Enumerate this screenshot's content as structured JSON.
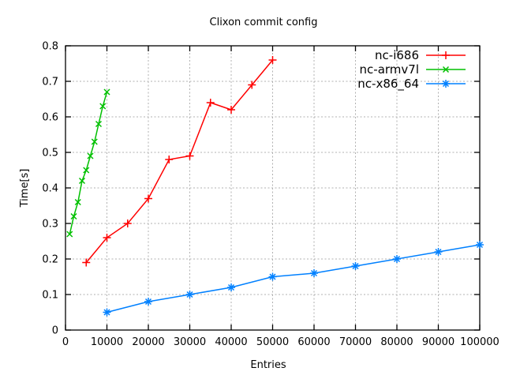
{
  "chart_data": {
    "type": "line",
    "title": "Clixon commit config",
    "xlabel": "Entries",
    "ylabel": "Time[s]",
    "xlim": [
      0,
      100000
    ],
    "ylim": [
      0,
      0.8
    ],
    "grid": true,
    "legend_position": "top-right-inside",
    "xticks": [
      {
        "v": 0,
        "label": "0"
      },
      {
        "v": 10000,
        "label": "10000"
      },
      {
        "v": 20000,
        "label": "20000"
      },
      {
        "v": 30000,
        "label": "30000"
      },
      {
        "v": 40000,
        "label": "40000"
      },
      {
        "v": 50000,
        "label": "50000"
      },
      {
        "v": 60000,
        "label": "60000"
      },
      {
        "v": 70000,
        "label": "70000"
      },
      {
        "v": 80000,
        "label": "80000"
      },
      {
        "v": 90000,
        "label": "90000"
      },
      {
        "v": 100000,
        "label": "100000"
      }
    ],
    "yticks": [
      {
        "v": 0,
        "label": "0"
      },
      {
        "v": 0.1,
        "label": "0.1"
      },
      {
        "v": 0.2,
        "label": "0.2"
      },
      {
        "v": 0.3,
        "label": "0.3"
      },
      {
        "v": 0.4,
        "label": "0.4"
      },
      {
        "v": 0.5,
        "label": "0.5"
      },
      {
        "v": 0.6,
        "label": "0.6"
      },
      {
        "v": 0.7,
        "label": "0.7"
      },
      {
        "v": 0.8,
        "label": "0.8"
      }
    ],
    "series": [
      {
        "name": "nc-i686",
        "color": "#ff0000",
        "marker": "plus",
        "points": [
          [
            5000,
            0.19
          ],
          [
            10000,
            0.26
          ],
          [
            15000,
            0.3
          ],
          [
            20000,
            0.37
          ],
          [
            25000,
            0.48
          ],
          [
            30000,
            0.49
          ],
          [
            35000,
            0.64
          ],
          [
            40000,
            0.62
          ],
          [
            45000,
            0.69
          ],
          [
            50000,
            0.76
          ]
        ]
      },
      {
        "name": "nc-armv7l",
        "color": "#00c000",
        "marker": "cross",
        "points": [
          [
            1000,
            0.27
          ],
          [
            2000,
            0.32
          ],
          [
            3000,
            0.36
          ],
          [
            4000,
            0.42
          ],
          [
            5000,
            0.45
          ],
          [
            6000,
            0.49
          ],
          [
            7000,
            0.53
          ],
          [
            8000,
            0.58
          ],
          [
            9000,
            0.63
          ],
          [
            10000,
            0.67
          ]
        ]
      },
      {
        "name": "nc-x86_64",
        "color": "#0080ff",
        "marker": "asterisk",
        "points": [
          [
            10000,
            0.05
          ],
          [
            20000,
            0.08
          ],
          [
            30000,
            0.1
          ],
          [
            40000,
            0.12
          ],
          [
            50000,
            0.15
          ],
          [
            60000,
            0.16
          ],
          [
            70000,
            0.18
          ],
          [
            80000,
            0.2
          ],
          [
            90000,
            0.22
          ],
          [
            100000,
            0.24
          ]
        ]
      }
    ]
  }
}
